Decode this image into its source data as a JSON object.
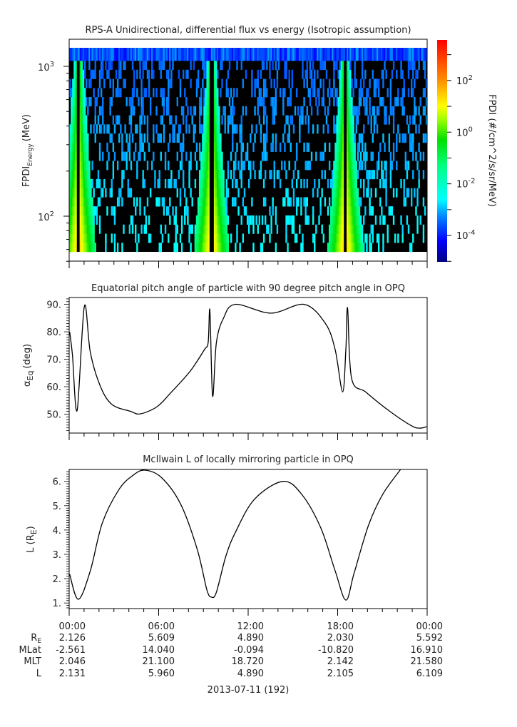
{
  "chart_data": [
    {
      "type": "heatmap",
      "title": "RPS-A Unidirectional, differential flux vs energy (Isotropic assumption)",
      "ylabel": {
        "main": "FPDI",
        "sub": "Energy",
        "unit": "(MeV)"
      },
      "yscale": "log",
      "ylim": [
        50,
        1500
      ],
      "yticks": [
        {
          "value": 100,
          "base": "10",
          "exp": "2"
        },
        {
          "value": 1000,
          "base": "10",
          "exp": "3"
        }
      ],
      "energy_range_MeV": [
        58,
        1300
      ],
      "xlim": [
        "00:00",
        "24:00"
      ],
      "colorbar": {
        "label": "FPDI (#/cm^2/s/sr/MeV)",
        "scale": "log",
        "range": [
          1e-05,
          3700.0
        ],
        "colormap": "rainbow",
        "ticks": [
          {
            "value": 100,
            "base": "10",
            "exp": "2"
          },
          {
            "value": 1,
            "base": "10",
            "exp": "0"
          },
          {
            "value": 0.01,
            "base": "10",
            "exp": "-2"
          },
          {
            "value": 0.0001,
            "base": "10",
            "exp": "-4"
          }
        ]
      }
    },
    {
      "type": "line",
      "title": "Equatorial pitch angle of particle with 90 degree pitch angle in OPQ",
      "ylabel": {
        "main": "α",
        "sub": "Eq",
        "unit": "(deg)"
      },
      "ylim": [
        43.1,
        92.5
      ],
      "yticks": [
        "50.",
        "60.",
        "70.",
        "80.",
        "90."
      ],
      "xlim": [
        "00:00",
        "24:00"
      ],
      "x": [
        "00:02",
        "00:13",
        "00:32",
        "01:01",
        "01:25",
        "02:04",
        "02:51",
        "04:07",
        "04:46",
        "05:53",
        "06:50",
        "08:07",
        "09:04",
        "09:19",
        "09:26",
        "09:37",
        "09:52",
        "10:20",
        "11:08",
        "13:32",
        "15:46",
        "17:11",
        "17:50",
        "18:20",
        "18:33",
        "18:40",
        "18:56",
        "19:54",
        "21:30",
        "22:56",
        "23:29",
        "23:58"
      ],
      "y": [
        80.0,
        71.8,
        51.4,
        89.3,
        72.6,
        60.5,
        53.6,
        51.0,
        50.1,
        52.7,
        57.9,
        65.7,
        73.5,
        76.1,
        87.8,
        56.6,
        76.0,
        84.8,
        90.0,
        86.8,
        90.0,
        83.0,
        73.5,
        58.1,
        73.5,
        88.7,
        63.1,
        58.0,
        51.0,
        45.8,
        44.9,
        45.4
      ]
    },
    {
      "type": "line",
      "title": "McIlwain L of locally mirroring particle in OPQ",
      "ylabel": {
        "main": "L (R",
        "sub": "E",
        "unit": ")"
      },
      "ylim": [
        0.77,
        6.49
      ],
      "yticks": [
        "1.",
        "2.",
        "3.",
        "4.",
        "5.",
        "6."
      ],
      "xlim": [
        "00:00",
        "24:00"
      ],
      "x": [
        "00:02",
        "00:37",
        "01:25",
        "02:13",
        "03:20",
        "04:17",
        "05:05",
        "06:12",
        "07:28",
        "08:35",
        "09:14",
        "09:33",
        "09:52",
        "10:30",
        "11:08",
        "12:25",
        "14:20",
        "15:36",
        "16:52",
        "17:50",
        "18:33",
        "19:06",
        "20:04",
        "21:01",
        "22:13"
      ],
      "y": [
        2.18,
        1.15,
        2.32,
        4.28,
        5.66,
        6.25,
        6.46,
        6.15,
        5.07,
        3.21,
        1.54,
        1.24,
        1.44,
        2.91,
        3.89,
        5.26,
        6.0,
        5.46,
        4.09,
        2.32,
        1.12,
        2.22,
        4.19,
        5.46,
        6.49
      ]
    }
  ],
  "ephemeris": {
    "times": [
      "00:00",
      "06:00",
      "12:00",
      "18:00",
      "00:00"
    ],
    "rows": [
      {
        "label": "R",
        "sub": "E",
        "values": [
          "2.126",
          "5.609",
          "4.890",
          "2.030",
          "5.592"
        ]
      },
      {
        "label": "MLat",
        "sub": "",
        "values": [
          "-2.561",
          "14.040",
          "-0.094",
          "-10.820",
          "16.910"
        ]
      },
      {
        "label": "MLT",
        "sub": "",
        "values": [
          "2.046",
          "21.100",
          "18.720",
          "2.142",
          "21.580"
        ]
      },
      {
        "label": "L",
        "sub": "",
        "values": [
          "2.131",
          "5.960",
          "4.890",
          "2.105",
          "6.109"
        ]
      }
    ],
    "date": "2013-07-11 (192)"
  }
}
